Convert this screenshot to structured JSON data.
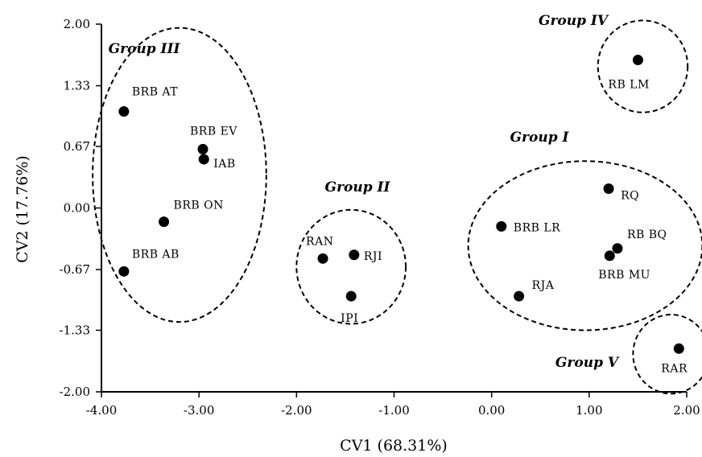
{
  "chart_data": {
    "type": "scatter",
    "xlabel": "CV1 (68.31%)",
    "ylabel": "CV2 (17.76%)",
    "xlim": [
      -4.0,
      2.0
    ],
    "ylim": [
      -2.0,
      2.0
    ],
    "xticks": [
      "-4.00",
      "-3.00",
      "-2.00",
      "-1.00",
      "0.00",
      "1.00",
      "2.00"
    ],
    "yticks": [
      "2.00",
      "1.33",
      "0.67",
      "0.00",
      "-0.67",
      "-1.33",
      "-2.00"
    ],
    "xtick_values": [
      -4,
      -3,
      -2,
      -1,
      0,
      1,
      2
    ],
    "ytick_values": [
      2,
      1.33,
      0.67,
      0,
      -0.67,
      -1.33,
      -2
    ],
    "points": [
      {
        "label": "BRB AT",
        "x": -3.77,
        "y": 1.05
      },
      {
        "label": "BRB EV",
        "x": -2.96,
        "y": 0.64
      },
      {
        "label": "IAB",
        "x": -2.95,
        "y": 0.53
      },
      {
        "label": "BRB ON",
        "x": -3.36,
        "y": -0.15
      },
      {
        "label": "BRB AB",
        "x": -3.77,
        "y": -0.69
      },
      {
        "label": "RAN",
        "x": -1.73,
        "y": -0.55
      },
      {
        "label": "RJI",
        "x": -1.41,
        "y": -0.51
      },
      {
        "label": "IPI",
        "x": -1.44,
        "y": -0.96
      },
      {
        "label": "BRB LR",
        "x": 0.1,
        "y": -0.2
      },
      {
        "label": "RQ",
        "x": 1.2,
        "y": 0.21
      },
      {
        "label": "RB BQ",
        "x": 1.29,
        "y": -0.44
      },
      {
        "label": "BRB MU",
        "x": 1.21,
        "y": -0.52
      },
      {
        "label": "RJA",
        "x": 0.28,
        "y": -0.96
      },
      {
        "label": "RB LM",
        "x": 1.5,
        "y": 1.61
      },
      {
        "label": "RAR",
        "x": 1.92,
        "y": -1.53
      }
    ],
    "groups": [
      {
        "name": "Group I",
        "cx": 0.96,
        "cy": -0.41,
        "rx": 1.2,
        "ry": 0.92
      },
      {
        "name": "Group II",
        "cx": -1.44,
        "cy": -0.64,
        "rx": 0.56,
        "ry": 0.62
      },
      {
        "name": "Group III",
        "cx": -3.2,
        "cy": 0.36,
        "rx": 0.89,
        "ry": 1.6
      },
      {
        "name": "Group IV",
        "cx": 1.55,
        "cy": 1.54,
        "rx": 0.46,
        "ry": 0.5
      },
      {
        "name": "Group V",
        "cx": 1.84,
        "cy": -1.59,
        "rx": 0.39,
        "ry": 0.43
      }
    ]
  }
}
